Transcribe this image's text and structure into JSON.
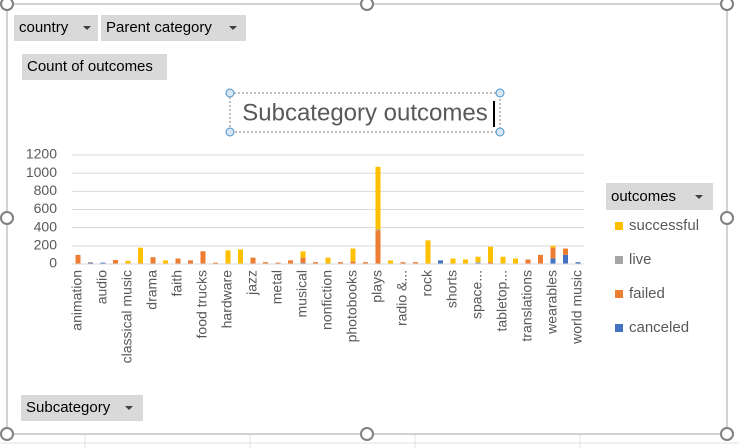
{
  "filters": [
    "country",
    "Parent category"
  ],
  "value_field": "Count of outcomes",
  "axis_field": "Subcategory",
  "chart_data": {
    "type": "bar",
    "stacked": true,
    "title": "Subcategory outcomes",
    "legend_title": "outcomes",
    "legend_position": "right",
    "grid": true,
    "ylim": [
      0,
      1200
    ],
    "yticks": [
      0,
      200,
      400,
      600,
      800,
      1000,
      1200
    ],
    "categories": [
      "animation",
      null,
      "audio",
      null,
      "classical music",
      null,
      "drama",
      null,
      "faith",
      null,
      "food trucks",
      null,
      "hardware",
      null,
      "jazz",
      null,
      "metal",
      null,
      "musical",
      null,
      "nonfiction",
      null,
      "photobooks",
      null,
      "plays",
      null,
      "radio &...",
      null,
      "rock",
      null,
      "shorts",
      null,
      "space...",
      null,
      "tabletop...",
      null,
      "translations",
      null,
      "wearables",
      null,
      "world music"
    ],
    "series": [
      {
        "name": "canceled",
        "color": "#4472c4",
        "values": [
          0,
          15,
          15,
          0,
          0,
          0,
          0,
          0,
          0,
          0,
          0,
          5,
          0,
          0,
          0,
          5,
          5,
          0,
          10,
          5,
          0,
          5,
          0,
          5,
          0,
          0,
          5,
          5,
          0,
          40,
          0,
          0,
          10,
          0,
          0,
          0,
          0,
          0,
          60,
          100,
          20
        ]
      },
      {
        "name": "failed",
        "color": "#ed7d31",
        "values": [
          100,
          5,
          0,
          45,
          0,
          10,
          75,
          0,
          60,
          40,
          140,
          10,
          0,
          0,
          70,
          15,
          10,
          40,
          60,
          15,
          0,
          15,
          30,
          15,
          370,
          0,
          15,
          15,
          0,
          0,
          0,
          0,
          0,
          20,
          0,
          0,
          50,
          100,
          120,
          70,
          0
        ]
      },
      {
        "name": "live",
        "color": "#a5a5a5",
        "values": [
          0,
          0,
          0,
          0,
          0,
          0,
          0,
          0,
          0,
          0,
          0,
          0,
          0,
          0,
          0,
          0,
          0,
          0,
          0,
          0,
          0,
          0,
          0,
          0,
          10,
          0,
          0,
          0,
          0,
          0,
          0,
          0,
          10,
          0,
          0,
          0,
          0,
          0,
          0,
          0,
          0
        ]
      },
      {
        "name": "successful",
        "color": "#ffc000",
        "values": [
          0,
          0,
          0,
          0,
          35,
          170,
          0,
          40,
          0,
          0,
          0,
          0,
          150,
          160,
          0,
          0,
          0,
          0,
          70,
          0,
          70,
          0,
          140,
          0,
          690,
          40,
          0,
          0,
          260,
          0,
          60,
          50,
          60,
          170,
          80,
          60,
          0,
          0,
          20,
          0,
          0
        ]
      }
    ]
  }
}
